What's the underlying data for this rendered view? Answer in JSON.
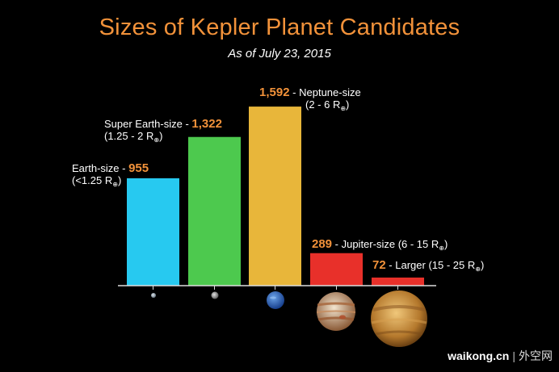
{
  "title": "Sizes of Kepler Planet Candidates",
  "subtitle": "As of July 23, 2015",
  "colors": {
    "title": "#f2923a",
    "value_text": "#f2923a",
    "earth": "#27c9f0",
    "super_earth": "#4dc94e",
    "neptune": "#e8b63a",
    "jupiter": "#e8302a",
    "larger": "#e8302a"
  },
  "watermark": {
    "brand": "waikong.cn",
    "separator": "|",
    "cn": "外空网"
  },
  "chart_data": {
    "type": "bar",
    "categories": [
      "Earth-size",
      "Super Earth-size",
      "Neptune-size",
      "Jupiter-size",
      "Larger"
    ],
    "values": [
      955,
      1322,
      1592,
      289,
      72
    ],
    "value_labels": [
      "955",
      "1,322",
      "1,592",
      "289",
      "72"
    ],
    "size_ranges": [
      "(<1.25 R",
      "(1.25 - 2 R",
      "(2 - 6 R",
      "(6 - 15 R",
      "(15 - 25 R"
    ],
    "ylim": [
      0,
      1650
    ],
    "grid": false,
    "legend": "none",
    "icons": [
      "earth-size-planet-icon",
      "super-earth-planet-icon",
      "neptune-planet-icon",
      "jupiter-planet-icon",
      "larger-planet-icon"
    ]
  }
}
